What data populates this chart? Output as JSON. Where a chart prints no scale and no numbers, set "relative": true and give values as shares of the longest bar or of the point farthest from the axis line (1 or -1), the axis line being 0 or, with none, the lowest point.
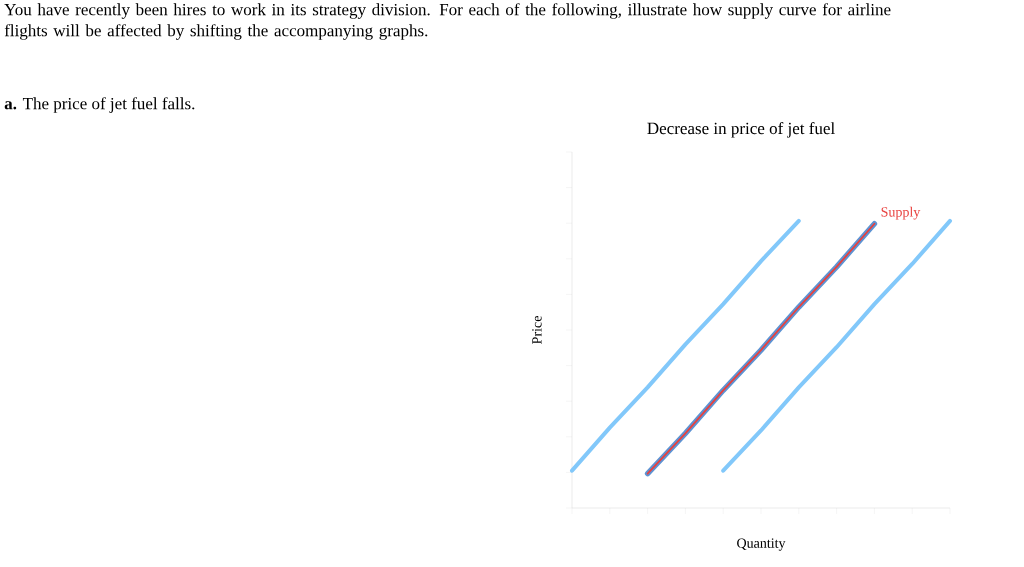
{
  "chart_data": {
    "type": "line",
    "title": "Decrease in price of jet fuel",
    "xlabel": "Quantity",
    "ylabel": "Price",
    "relative": true,
    "legend": false,
    "tick_labels": false,
    "grid": false,
    "line_style": "solid",
    "annotations": [
      "You have recently been hires to work in its strategy division. For each of the following, illustrate how supply curve for airline flights will be affected by shifting the accompanying graphs.",
      "**a.** The price of jet fuel falls."
    ],
    "categories": [
      null,
      null,
      null,
      null,
      null,
      null,
      null,
      null,
      null,
      null,
      null
    ],
    "series": [
      {
        "color": "#82c8fa",
        "values": [
          0.13,
          0.28,
          0.42,
          0.57,
          0.71,
          0.86,
          1.0,
          null,
          null,
          null,
          null
        ]
      },
      {
        "color": "#5d93d3",
        "values": [
          null,
          null,
          0.12,
          0.26,
          0.41,
          0.55,
          0.7,
          0.84,
          0.99,
          null,
          null
        ]
      },
      {
        "color": "#82c8fa",
        "values": [
          null,
          null,
          null,
          null,
          0.13,
          0.27,
          0.42,
          0.56,
          0.71,
          0.85,
          1.0
        ]
      },
      {
        "name": "Supply",
        "color": "#e8413e",
        "values": [
          null,
          null,
          0.12,
          0.26,
          0.41,
          0.55,
          0.7,
          0.84,
          0.99,
          null,
          null
        ]
      }
    ]
  }
}
